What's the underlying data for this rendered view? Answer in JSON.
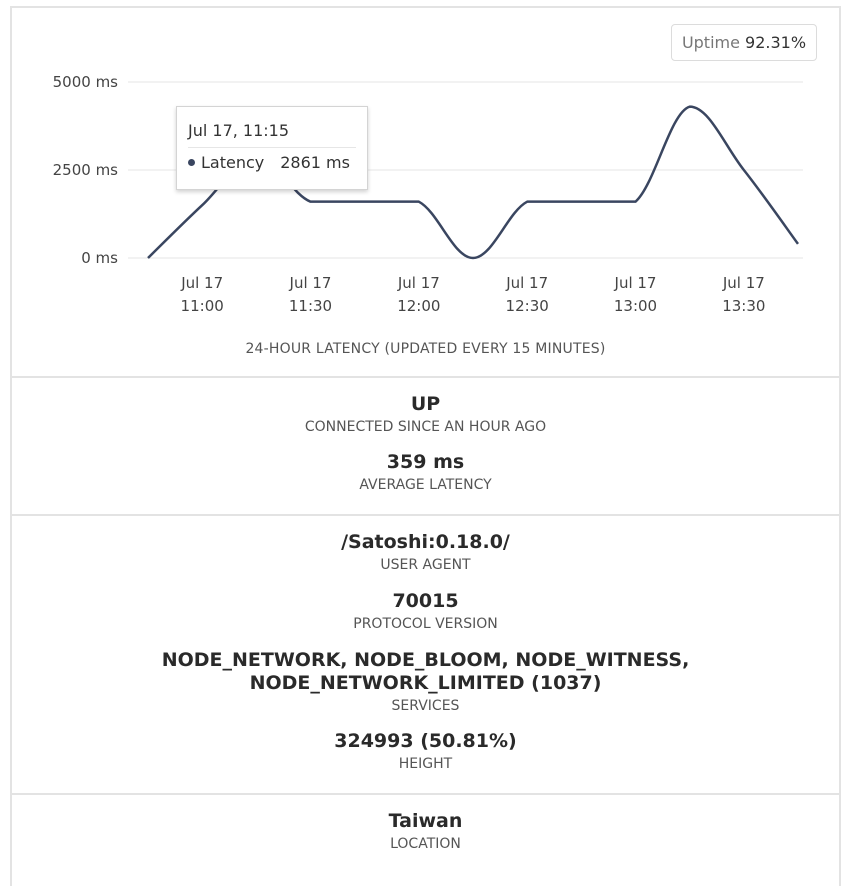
{
  "uptime": {
    "label": "Uptime",
    "value": "92.31%"
  },
  "chart_data": {
    "type": "line",
    "ylabel_ticks": [
      "0 ms",
      "2500 ms",
      "5000 ms"
    ],
    "ylim": [
      0,
      5000
    ],
    "x_ticks": [
      {
        "date": "Jul 17",
        "time": "11:00"
      },
      {
        "date": "Jul 17",
        "time": "11:30"
      },
      {
        "date": "Jul 17",
        "time": "12:00"
      },
      {
        "date": "Jul 17",
        "time": "12:30"
      },
      {
        "date": "Jul 17",
        "time": "13:00"
      },
      {
        "date": "Jul 17",
        "time": "13:30"
      }
    ],
    "series": [
      {
        "values_time": [
          "10:45",
          "11:00",
          "11:15",
          "11:30",
          "11:45",
          "12:00",
          "12:15",
          "12:30",
          "12:45",
          "13:00",
          "13:15",
          "13:30",
          "13:45"
        ],
        "values_ms": [
          0,
          1500,
          2861,
          1600,
          1600,
          1600,
          0,
          1600,
          1600,
          1600,
          4300,
          2500,
          400
        ],
        "color": "#3a4660"
      }
    ],
    "grid": true,
    "caption": "24-HOUR LATENCY (UPDATED EVERY 15 MINUTES)"
  },
  "tooltip": {
    "title": "Jul 17, 11:15",
    "series": "Latency",
    "value": "2861 ms"
  },
  "status": {
    "state": "UP",
    "state_label": "CONNECTED SINCE AN HOUR AGO",
    "latency": "359 ms",
    "latency_label": "AVERAGE LATENCY"
  },
  "node": {
    "user_agent": "/Satoshi:0.18.0/",
    "user_agent_label": "USER AGENT",
    "protocol": "70015",
    "protocol_label": "PROTOCOL VERSION",
    "services_line1": "NODE_NETWORK, NODE_BLOOM, NODE_WITNESS,",
    "services_line2": "NODE_NETWORK_LIMITED (1037)",
    "services_label": "SERVICES",
    "height": "324993 (50.81%)",
    "height_label": "HEIGHT"
  },
  "location": {
    "value": "Taiwan",
    "label": "LOCATION"
  }
}
